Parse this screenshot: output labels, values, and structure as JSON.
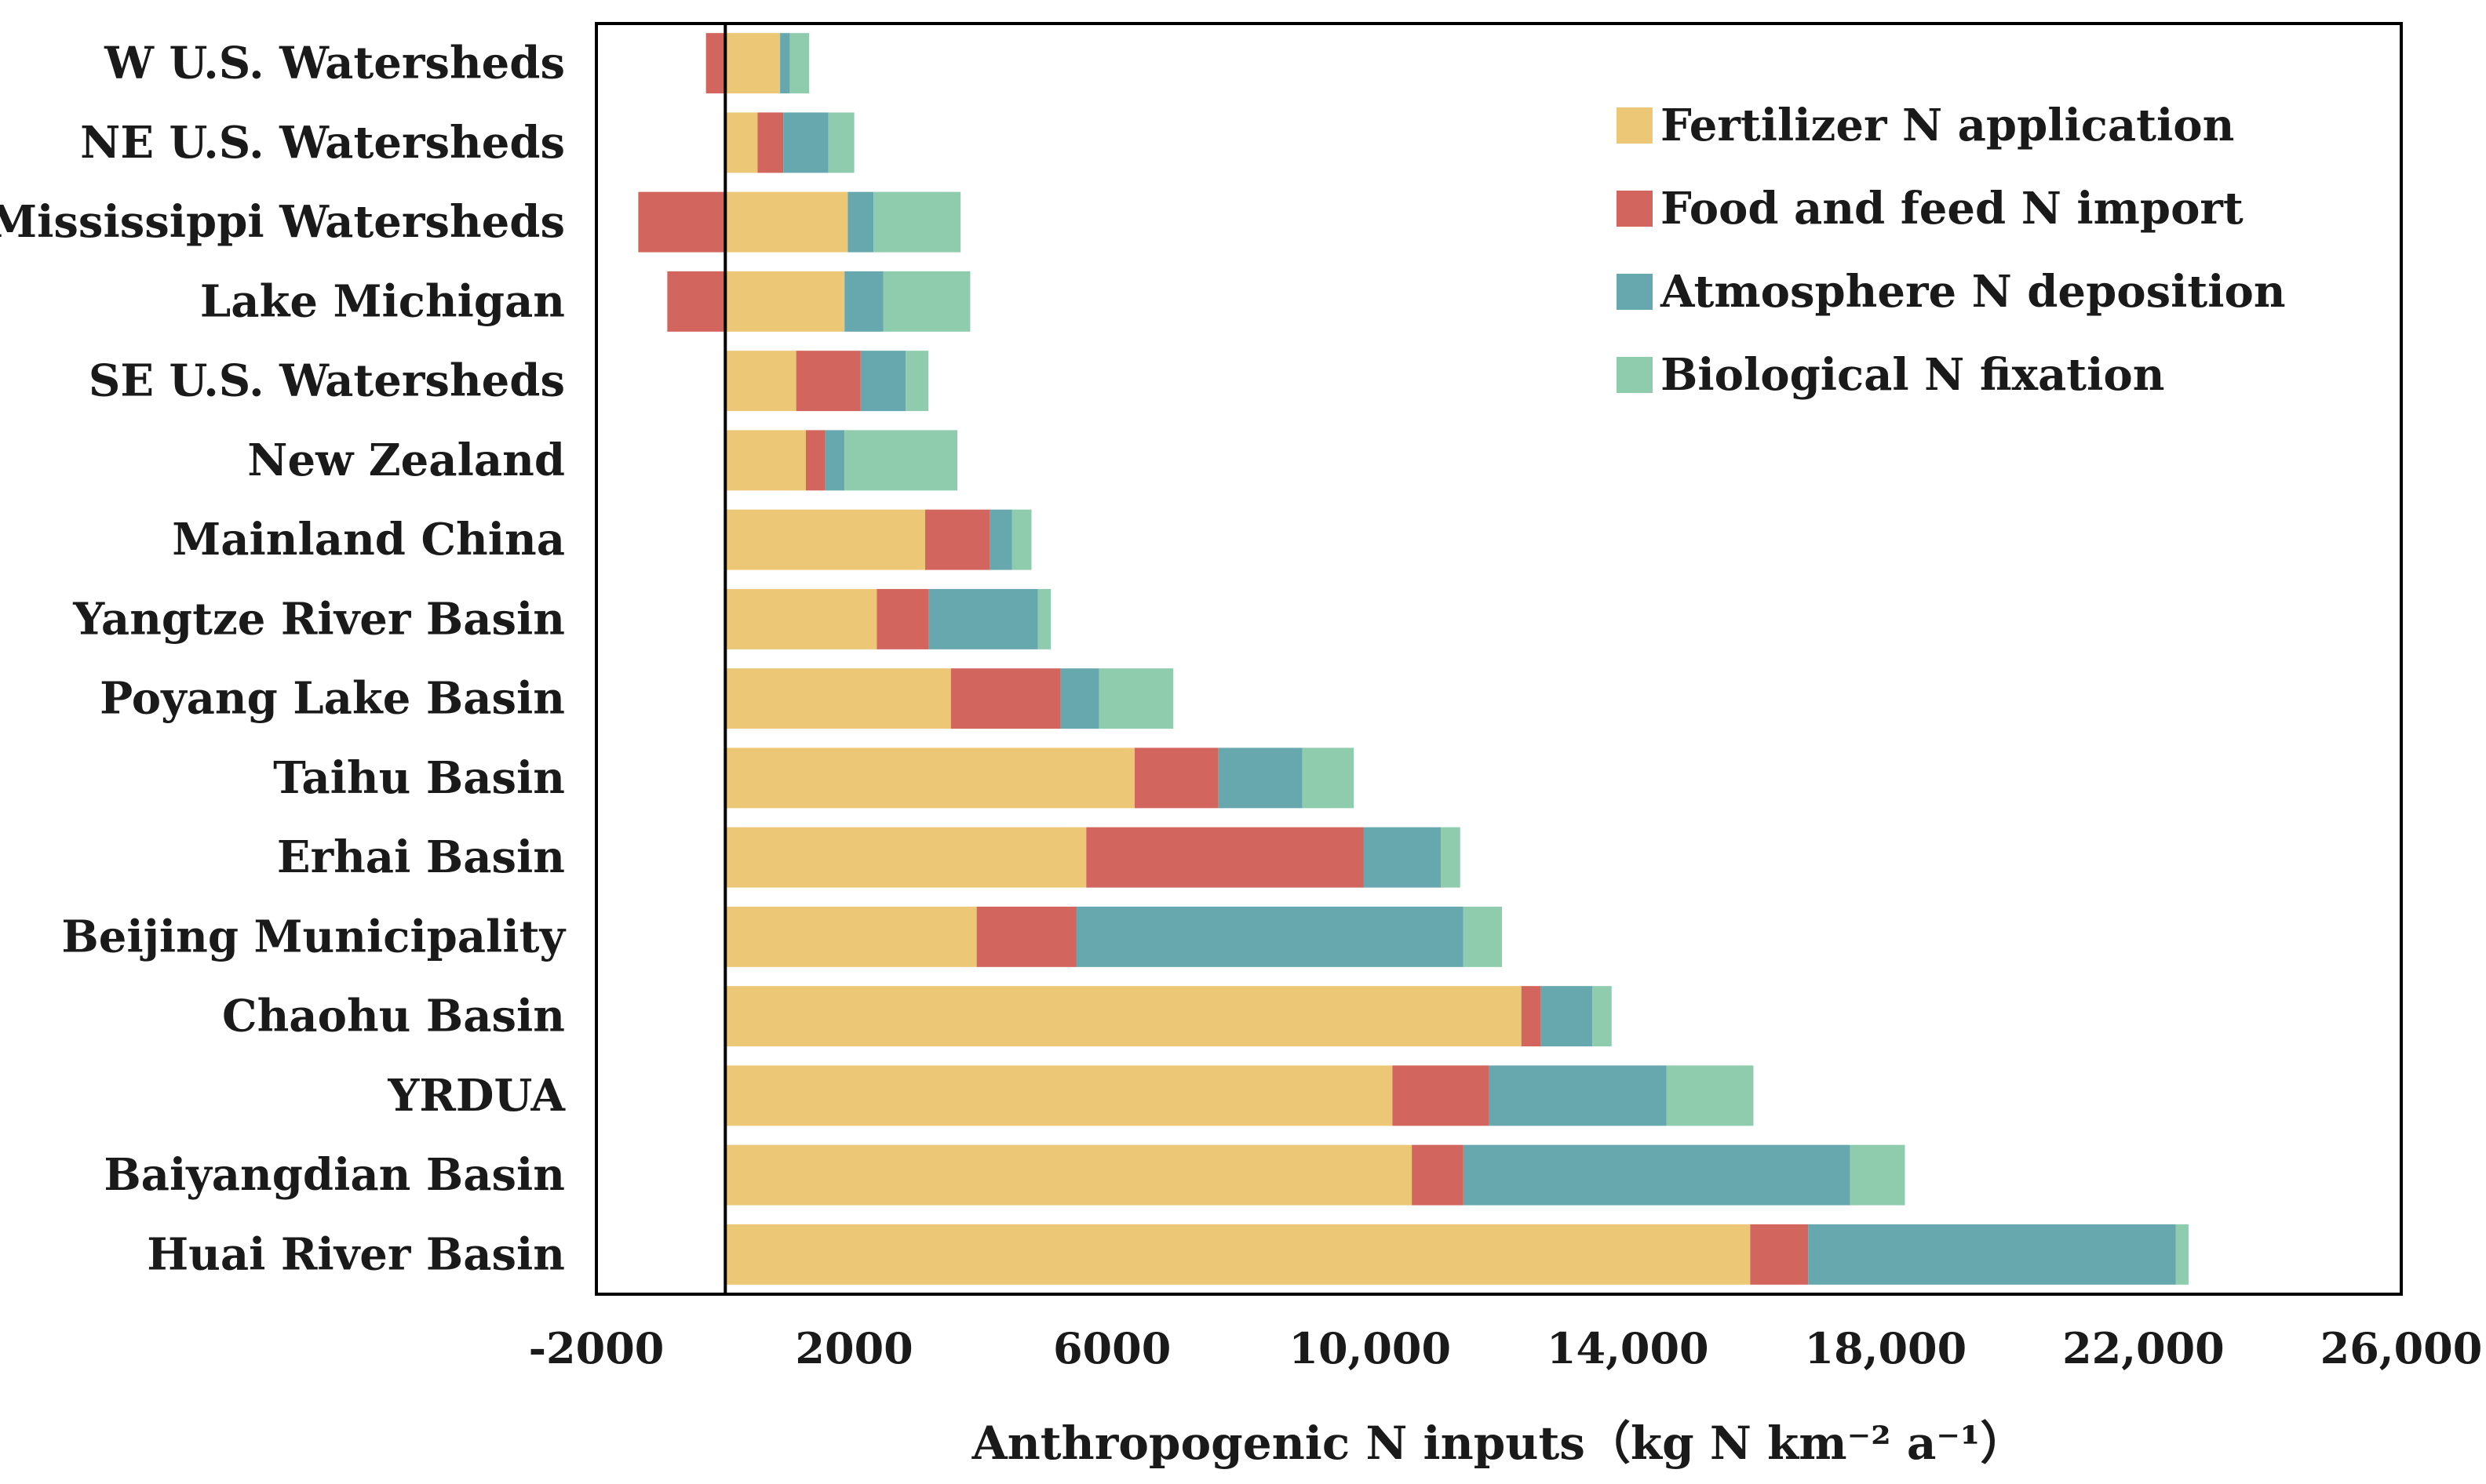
{
  "chart_data": {
    "type": "bar",
    "orientation": "horizontal",
    "stacked": true,
    "title": "",
    "xlabel": "Anthropogenic N inputs（kg N km⁻² a⁻¹）",
    "ylabel": "",
    "xlim": [
      -2000,
      26000
    ],
    "xticks": [
      -2000,
      2000,
      6000,
      10000,
      14000,
      18000,
      22000,
      26000
    ],
    "xtick_labels": [
      "-2000",
      "2000",
      "6000",
      "10,000",
      "14,000",
      "18,000",
      "22,000",
      "26,000"
    ],
    "categories": [
      "W U.S. Watersheds",
      "NE U.S. Watersheds",
      "Mississippi Watersheds",
      "Lake Michigan",
      "SE U.S. Watersheds",
      "New Zealand",
      "Mainland China",
      "Yangtze River Basin",
      "Poyang Lake Basin",
      "Taihu Basin",
      "Erhai Basin",
      "Beijing Municipality",
      "Chaohu Basin",
      "YRDUA",
      "Baiyangdian Basin",
      "Huai River Basin"
    ],
    "series": [
      {
        "name": "Fertilizer N application",
        "color": "#EBC776",
        "values": [
          850,
          500,
          1900,
          1850,
          1100,
          1250,
          3100,
          2350,
          3500,
          6350,
          5600,
          3900,
          12350,
          10350,
          10650,
          15900
        ]
      },
      {
        "name": "Food and feed N import",
        "color": "#D3655F",
        "values": [
          -300,
          400,
          -1350,
          -900,
          1000,
          300,
          1000,
          800,
          1700,
          1300,
          4300,
          1550,
          300,
          1500,
          800,
          900
        ]
      },
      {
        "name": "Atmosphere N deposition",
        "color": "#67A8AE",
        "values": [
          150,
          700,
          400,
          600,
          700,
          300,
          350,
          1700,
          600,
          1300,
          1200,
          6000,
          800,
          2750,
          6000,
          5700
        ]
      },
      {
        "name": "Biological N fixation",
        "color": "#8FCCAE",
        "values": [
          300,
          400,
          1350,
          1350,
          350,
          1750,
          300,
          200,
          1150,
          800,
          300,
          600,
          300,
          1350,
          850,
          200
        ]
      }
    ],
    "legend_position": "top-right",
    "grid": false
  }
}
